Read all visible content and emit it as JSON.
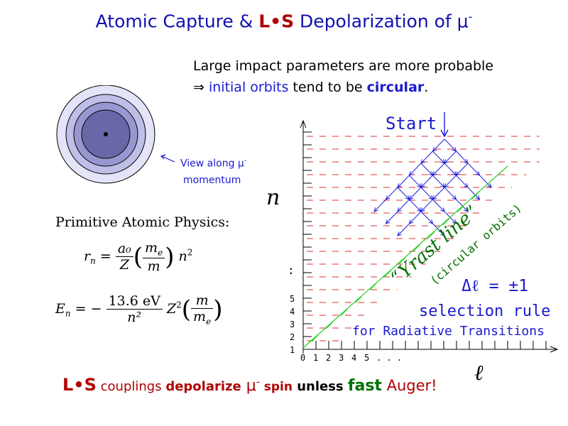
{
  "title": {
    "part1": "Atomic Capture  & ",
    "ls": "L•S",
    "part2": " Depolarization  of  μ",
    "sup": "-"
  },
  "intro": {
    "line1": "Large impact parameters are more probable",
    "arrow": "⇒",
    "blue1": "initial orbits",
    "mid": " tend to be ",
    "blue2": "circular",
    "end": "."
  },
  "view_label": {
    "line1": "View along μ",
    "sup": "-",
    "line2": "momentum"
  },
  "primitive_title": "Primitive Atomic Physics:",
  "formula_r": {
    "lhs": "r",
    "lhs_sub": "n",
    "num1": "a₀",
    "den1": "Z",
    "num2": "m",
    "num2_sub": "e",
    "den2": "m",
    "tail": "n",
    "tail_sup": "2"
  },
  "formula_e": {
    "lhs": "E",
    "lhs_sub": "n",
    "num1": "13.6 eV",
    "den1": "n²",
    "z": "Z",
    "z_sup": "2",
    "num2": "m",
    "den2": "m",
    "den2_sub": "e"
  },
  "diagram": {
    "start_label": "Start",
    "n_axis": "n",
    "l_axis": "ℓ",
    "yrast": "“Yrast line”",
    "circular": "(circular orbits)",
    "delta": "Δℓ  =  ±1",
    "selection": "selection  rule",
    "radiative": "for Radiative Transitions",
    "y_ticks": [
      "1",
      "2",
      "3",
      "4",
      "5"
    ],
    "y_dots": ":",
    "x_ticks": [
      "0",
      "1",
      "2",
      "3",
      "4",
      "5"
    ],
    "x_dots": ". . ."
  },
  "bottom": {
    "ls": "L•S",
    "t1": " couplings ",
    "t2": "depolarize",
    "t3": "  μ",
    "sup": "-",
    "t4": " spin",
    "t5": "  unless ",
    "t6": "fast",
    "t7": " Auger!"
  },
  "colors": {
    "title": "#1010b0",
    "accent_red": "#b00000",
    "blue": "#1a1ad0",
    "green": "#007000",
    "dash_red": "#e03030",
    "grid_blue": "#2020e0",
    "yrast_green": "#20d020"
  }
}
